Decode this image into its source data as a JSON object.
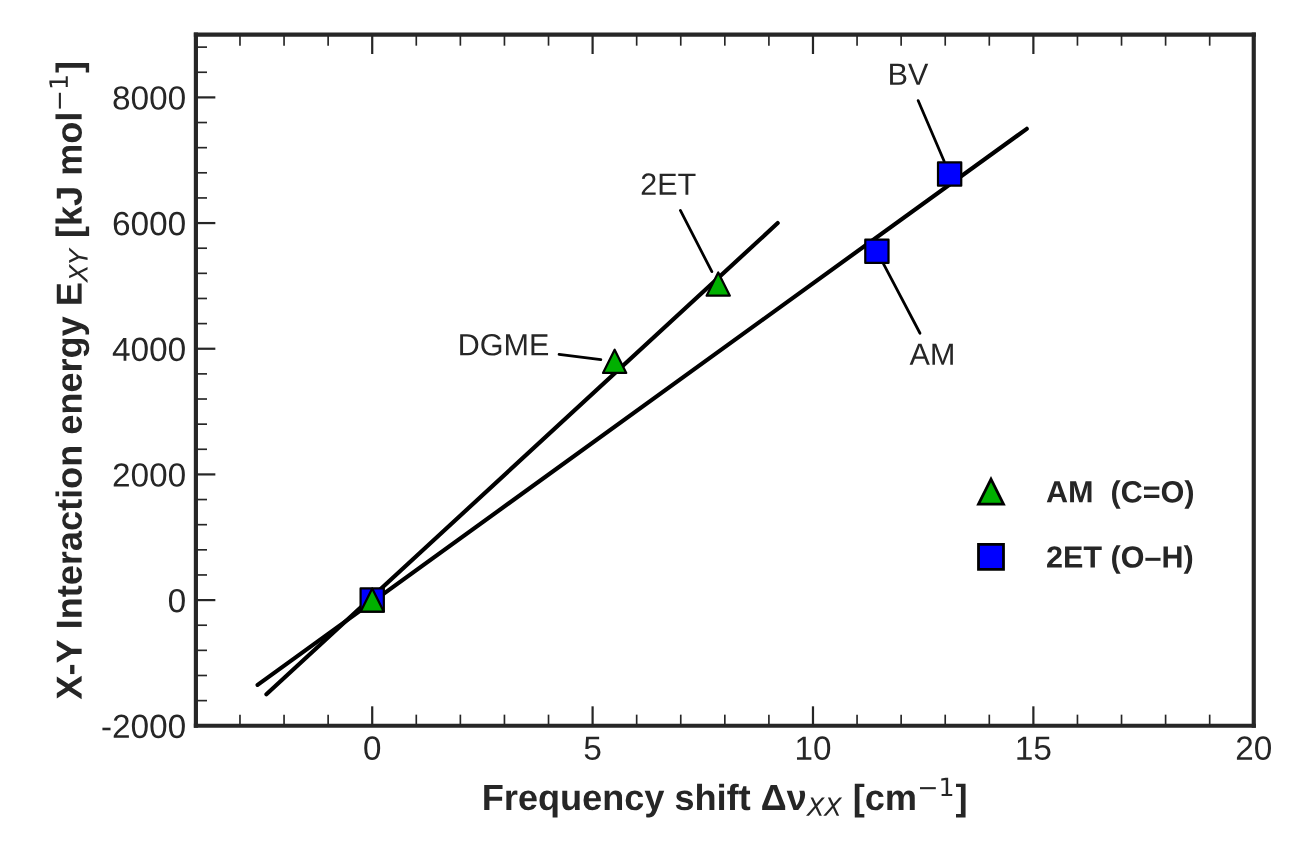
{
  "chart_data": {
    "type": "scatter",
    "xlabel": "Frequency shift Δν$_{XX}$ [cm$^{−1}$]",
    "ylabel": "X-Y Interaction energy E$_{XY}$ [kJ mol$^{−1}$]",
    "series": [
      {
        "type": "line",
        "color": "#000000",
        "x": [
          -2.4,
          9.2
        ],
        "values": [
          -1500,
          6000
        ]
      },
      {
        "type": "line",
        "color": "#000000",
        "x": [
          -2.6,
          14.85
        ],
        "values": [
          -1350,
          7500
        ]
      },
      {
        "name": "AM  (C=O)",
        "color": "#00b000",
        "marker": "triangle",
        "x": [
          0,
          5.5,
          7.85
        ],
        "values": [
          0,
          3800,
          5030
        ]
      },
      {
        "name": "2ET (O–H)",
        "color": "#0000ff",
        "marker": "square",
        "x": [
          0,
          11.45,
          13.1
        ],
        "values": [
          0,
          5550,
          6780
        ]
      }
    ],
    "annotations": [
      {
        "text": "DGME",
        "x": 5.5,
        "y": 3800
      },
      {
        "text": "2ET",
        "x": 7.85,
        "y": 5030
      },
      {
        "text": "AM",
        "x": 11.45,
        "y": 5550
      },
      {
        "text": "BV",
        "x": 13.1,
        "y": 6780
      }
    ],
    "xlim": [
      -4,
      20
    ],
    "xticks": [
      0,
      5,
      10,
      15,
      20
    ],
    "ylim": [
      -2000,
      9000
    ],
    "yticks": [
      -2000,
      0,
      2000,
      4000,
      6000,
      8000
    ],
    "grid": false,
    "legend": "bottom right"
  }
}
